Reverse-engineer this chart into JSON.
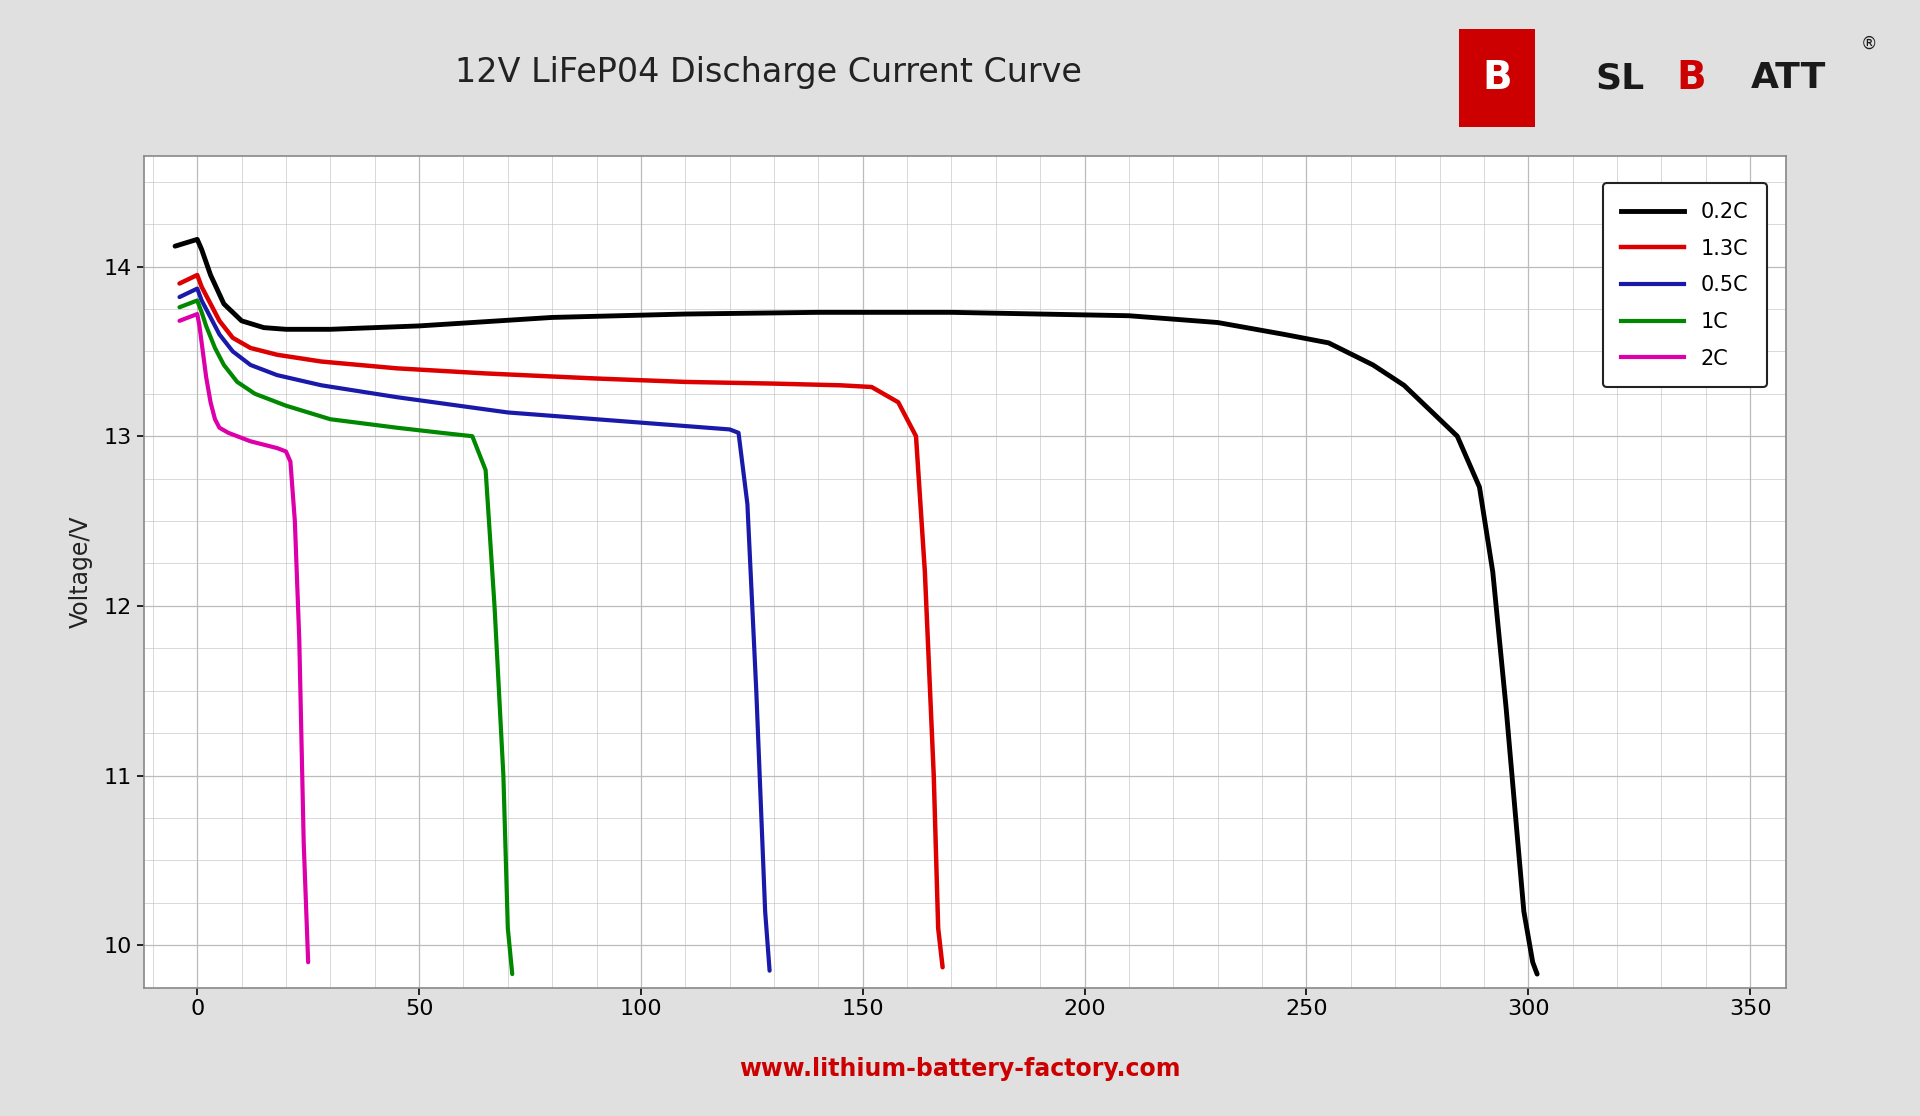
{
  "title": "12V LiFeP04 Discharge Current Curve",
  "ylabel": "Voltage/V",
  "background_color": "#e0e0e0",
  "plot_bg_color": "#ffffff",
  "grid_color": "#bbbbbb",
  "title_fontsize": 24,
  "axis_fontsize": 17,
  "tick_fontsize": 16,
  "xlim": [
    -12,
    358
  ],
  "ylim": [
    9.75,
    14.65
  ],
  "xticks": [
    0,
    50,
    100,
    150,
    200,
    250,
    300,
    350
  ],
  "yticks": [
    10,
    11,
    12,
    13,
    14
  ],
  "footer_text": "www.lithium-battery-factory.com",
  "footer_color": "#cc0000",
  "curves": [
    {
      "label": "0.2C",
      "color": "#000000",
      "lw": 3.5
    },
    {
      "label": "1.3C",
      "color": "#dd0000",
      "lw": 3.2
    },
    {
      "label": "0.5C",
      "color": "#1a1aaa",
      "lw": 3.0
    },
    {
      "label": "1C",
      "color": "#008800",
      "lw": 3.0
    },
    {
      "label": "2C",
      "color": "#dd00aa",
      "lw": 3.0
    }
  ],
  "curve_02C_x": [
    -5,
    0,
    1,
    3,
    6,
    10,
    15,
    20,
    30,
    50,
    80,
    110,
    140,
    170,
    190,
    210,
    230,
    245,
    255,
    265,
    272,
    278,
    284,
    289,
    292,
    295,
    297,
    299,
    301,
    302
  ],
  "curve_02C_y": [
    14.12,
    14.16,
    14.1,
    13.95,
    13.78,
    13.68,
    13.64,
    13.63,
    13.63,
    13.65,
    13.7,
    13.72,
    13.73,
    13.73,
    13.72,
    13.71,
    13.67,
    13.6,
    13.55,
    13.42,
    13.3,
    13.15,
    13.0,
    12.7,
    12.2,
    11.4,
    10.8,
    10.2,
    9.9,
    9.83
  ],
  "curve_13C_x": [
    -4,
    0,
    1,
    3,
    5,
    8,
    12,
    18,
    28,
    45,
    65,
    90,
    110,
    130,
    145,
    152,
    158,
    162,
    164,
    166,
    167,
    168
  ],
  "curve_13C_y": [
    13.9,
    13.95,
    13.88,
    13.78,
    13.68,
    13.58,
    13.52,
    13.48,
    13.44,
    13.4,
    13.37,
    13.34,
    13.32,
    13.31,
    13.3,
    13.29,
    13.2,
    13.0,
    12.2,
    11.0,
    10.1,
    9.87
  ],
  "curve_05C_x": [
    -4,
    0,
    1,
    3,
    5,
    8,
    12,
    18,
    28,
    45,
    70,
    90,
    105,
    115,
    120,
    122,
    124,
    126,
    128,
    129
  ],
  "curve_05C_y": [
    13.82,
    13.87,
    13.8,
    13.7,
    13.6,
    13.5,
    13.42,
    13.36,
    13.3,
    13.23,
    13.14,
    13.1,
    13.07,
    13.05,
    13.04,
    13.02,
    12.6,
    11.5,
    10.2,
    9.85
  ],
  "curve_1C_x": [
    -4,
    0,
    1,
    2,
    4,
    6,
    9,
    13,
    20,
    30,
    45,
    55,
    62,
    65,
    67,
    69,
    70,
    71
  ],
  "curve_1C_y": [
    13.76,
    13.8,
    13.73,
    13.65,
    13.52,
    13.42,
    13.32,
    13.25,
    13.18,
    13.1,
    13.05,
    13.02,
    13.0,
    12.8,
    12.0,
    11.0,
    10.1,
    9.83
  ],
  "curve_2C_x": [
    -4,
    0,
    0.5,
    1,
    2,
    3,
    4,
    5,
    7,
    9,
    12,
    15,
    18,
    20,
    21,
    22,
    23,
    24,
    25
  ],
  "curve_2C_y": [
    13.68,
    13.72,
    13.65,
    13.55,
    13.35,
    13.2,
    13.1,
    13.05,
    13.02,
    13.0,
    12.97,
    12.95,
    12.93,
    12.91,
    12.85,
    12.5,
    11.8,
    10.6,
    9.9
  ]
}
